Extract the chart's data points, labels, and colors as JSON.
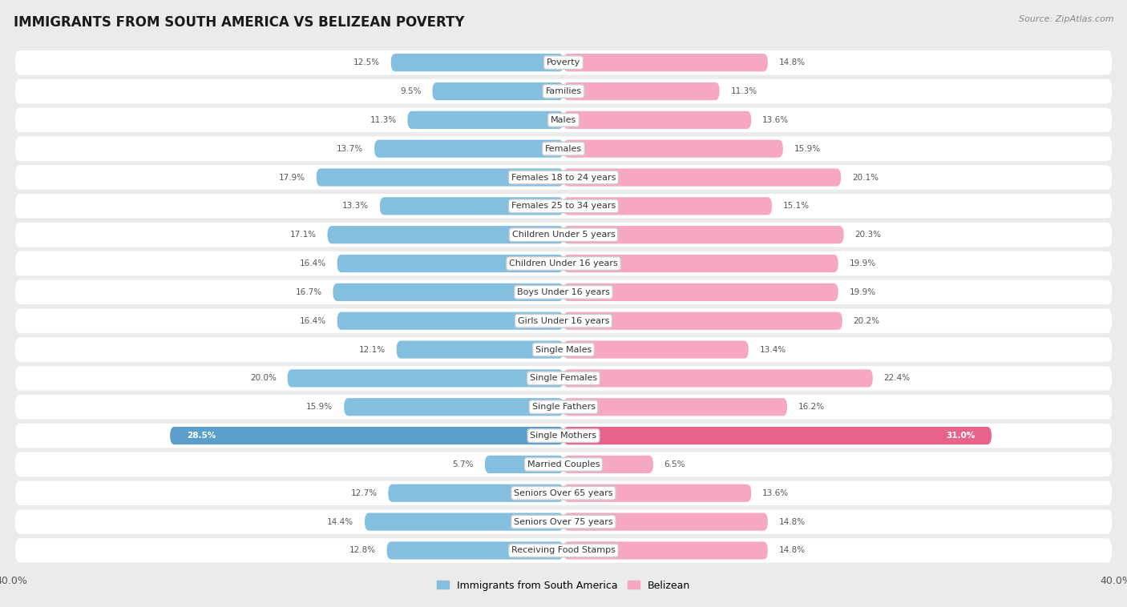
{
  "title": "IMMIGRANTS FROM SOUTH AMERICA VS BELIZEAN POVERTY",
  "source": "Source: ZipAtlas.com",
  "categories": [
    "Poverty",
    "Families",
    "Males",
    "Females",
    "Females 18 to 24 years",
    "Females 25 to 34 years",
    "Children Under 5 years",
    "Children Under 16 years",
    "Boys Under 16 years",
    "Girls Under 16 years",
    "Single Males",
    "Single Females",
    "Single Fathers",
    "Single Mothers",
    "Married Couples",
    "Seniors Over 65 years",
    "Seniors Over 75 years",
    "Receiving Food Stamps"
  ],
  "left_values": [
    12.5,
    9.5,
    11.3,
    13.7,
    17.9,
    13.3,
    17.1,
    16.4,
    16.7,
    16.4,
    12.1,
    20.0,
    15.9,
    28.5,
    5.7,
    12.7,
    14.4,
    12.8
  ],
  "right_values": [
    14.8,
    11.3,
    13.6,
    15.9,
    20.1,
    15.1,
    20.3,
    19.9,
    19.9,
    20.2,
    13.4,
    22.4,
    16.2,
    31.0,
    6.5,
    13.6,
    14.8,
    14.8
  ],
  "left_color": "#85bfe0",
  "right_color": "#f5a8bf",
  "highlight_left_color": "#5b9ec9",
  "highlight_right_color": "#e8638a",
  "highlight_row": 13,
  "axis_limit": 40.0,
  "bg_color": "#ebebeb",
  "row_bg_color": "#ffffff",
  "legend_left": "Immigrants from South America",
  "legend_right": "Belizean",
  "title_fontsize": 12,
  "label_fontsize": 8,
  "value_fontsize": 7.5,
  "axis_fontsize": 9,
  "bar_height": 0.62
}
